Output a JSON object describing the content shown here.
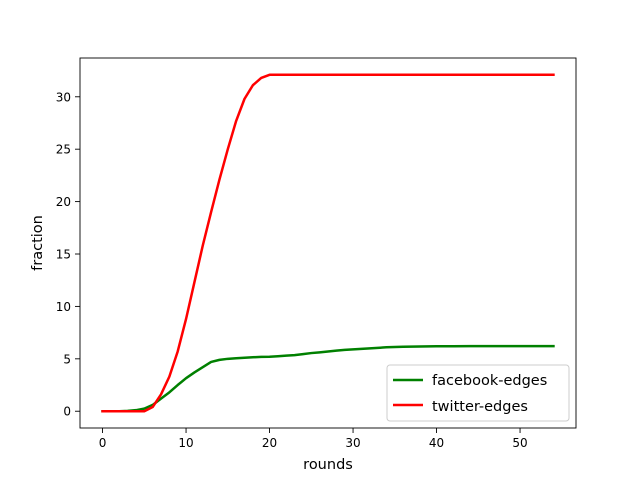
{
  "chart_data": {
    "type": "line",
    "title": "",
    "xlabel": "rounds",
    "ylabel": "fraction",
    "xlim": [
      -2.7,
      56.7
    ],
    "ylim": [
      -1.6,
      33.7
    ],
    "xticks": [
      0,
      10,
      20,
      30,
      40,
      50
    ],
    "yticks": [
      0,
      5,
      10,
      15,
      20,
      25,
      30
    ],
    "xtick_labels": [
      "0",
      "10",
      "20",
      "30",
      "40",
      "50"
    ],
    "ytick_labels": [
      "0",
      "5",
      "10",
      "15",
      "20",
      "25",
      "30"
    ],
    "grid": false,
    "legend_position": "lower-right",
    "series": [
      {
        "name": "facebook-edges",
        "color": "#008000",
        "x": [
          0,
          1,
          2,
          3,
          4,
          5,
          6,
          7,
          8,
          9,
          10,
          11,
          12,
          13,
          14,
          15,
          16,
          17,
          18,
          19,
          20,
          21,
          22,
          23,
          24,
          25,
          26,
          27,
          28,
          29,
          30,
          32,
          34,
          36,
          38,
          40,
          42,
          44,
          46,
          48,
          50,
          52,
          54
        ],
        "y": [
          0,
          0,
          0,
          0.03,
          0.1,
          0.25,
          0.6,
          1.2,
          1.8,
          2.5,
          3.15,
          3.7,
          4.2,
          4.7,
          4.9,
          5.0,
          5.05,
          5.1,
          5.15,
          5.18,
          5.2,
          5.25,
          5.3,
          5.35,
          5.45,
          5.55,
          5.62,
          5.7,
          5.78,
          5.85,
          5.9,
          6.0,
          6.1,
          6.15,
          6.18,
          6.2,
          6.2,
          6.21,
          6.21,
          6.21,
          6.21,
          6.21,
          6.21
        ]
      },
      {
        "name": "twitter-edges",
        "color": "#ff0000",
        "x": [
          0,
          1,
          2,
          3,
          4,
          5,
          6,
          7,
          8,
          9,
          10,
          11,
          12,
          13,
          14,
          15,
          16,
          17,
          18,
          19,
          20,
          22,
          25,
          30,
          35,
          40,
          45,
          50,
          54
        ],
        "y": [
          0,
          0,
          0,
          0,
          0,
          0,
          0.4,
          1.6,
          3.3,
          5.7,
          8.8,
          12.3,
          15.8,
          19.0,
          22.1,
          25.0,
          27.7,
          29.8,
          31.1,
          31.8,
          32.1,
          32.1,
          32.1,
          32.1,
          32.1,
          32.1,
          32.1,
          32.1,
          32.1
        ]
      }
    ]
  }
}
